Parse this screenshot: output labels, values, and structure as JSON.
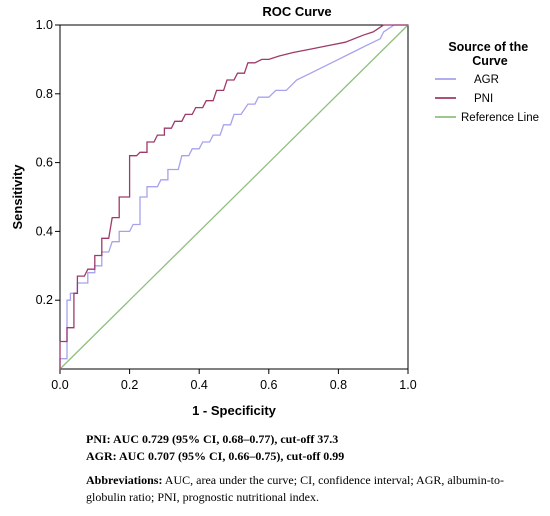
{
  "chart_data": {
    "type": "line",
    "title": "ROC Curve",
    "xlabel": "1 - Specificity",
    "ylabel": "Sensitivity",
    "xlim": [
      0,
      1
    ],
    "ylim": [
      0,
      1
    ],
    "xticks": [
      "0.0",
      "0.2",
      "0.4",
      "0.6",
      "0.8",
      "1.0"
    ],
    "yticks": [
      "0.2",
      "0.4",
      "0.6",
      "0.8",
      "1.0"
    ],
    "grid": false,
    "legend_title": "Source of the Curve",
    "legend_position": "right",
    "series": [
      {
        "name": "AGR",
        "color": "#a6a2ee",
        "x": [
          0,
          0,
          0.02,
          0.02,
          0.03,
          0.03,
          0.05,
          0.05,
          0.08,
          0.08,
          0.1,
          0.1,
          0.12,
          0.12,
          0.14,
          0.15,
          0.17,
          0.17,
          0.2,
          0.21,
          0.23,
          0.23,
          0.25,
          0.25,
          0.28,
          0.29,
          0.31,
          0.31,
          0.34,
          0.35,
          0.37,
          0.38,
          0.4,
          0.41,
          0.43,
          0.44,
          0.46,
          0.47,
          0.49,
          0.5,
          0.52,
          0.54,
          0.56,
          0.57,
          0.6,
          0.62,
          0.65,
          0.68,
          0.72,
          0.76,
          0.8,
          0.84,
          0.88,
          0.92,
          0.93,
          0.96,
          1.0
        ],
        "y": [
          0,
          0.03,
          0.03,
          0.2,
          0.2,
          0.22,
          0.22,
          0.25,
          0.25,
          0.28,
          0.28,
          0.3,
          0.3,
          0.34,
          0.34,
          0.37,
          0.37,
          0.4,
          0.4,
          0.42,
          0.42,
          0.5,
          0.5,
          0.53,
          0.53,
          0.55,
          0.55,
          0.58,
          0.58,
          0.62,
          0.62,
          0.64,
          0.64,
          0.66,
          0.66,
          0.68,
          0.68,
          0.71,
          0.71,
          0.74,
          0.74,
          0.77,
          0.77,
          0.79,
          0.79,
          0.81,
          0.81,
          0.84,
          0.86,
          0.88,
          0.9,
          0.92,
          0.94,
          0.96,
          0.98,
          1.0,
          1.0
        ]
      },
      {
        "name": "PNI",
        "color": "#9e3a6a",
        "x": [
          0,
          0,
          0.02,
          0.02,
          0.04,
          0.04,
          0.05,
          0.05,
          0.07,
          0.08,
          0.1,
          0.1,
          0.12,
          0.12,
          0.14,
          0.15,
          0.17,
          0.17,
          0.2,
          0.2,
          0.22,
          0.23,
          0.25,
          0.25,
          0.27,
          0.28,
          0.3,
          0.3,
          0.32,
          0.33,
          0.35,
          0.36,
          0.38,
          0.39,
          0.41,
          0.42,
          0.44,
          0.45,
          0.47,
          0.48,
          0.5,
          0.51,
          0.53,
          0.54,
          0.56,
          0.58,
          0.6,
          0.63,
          0.67,
          0.72,
          0.77,
          0.82,
          0.87,
          0.9,
          0.93,
          0.96,
          1.0
        ],
        "y": [
          0,
          0.08,
          0.08,
          0.12,
          0.12,
          0.22,
          0.22,
          0.27,
          0.27,
          0.29,
          0.29,
          0.33,
          0.33,
          0.38,
          0.38,
          0.44,
          0.44,
          0.5,
          0.5,
          0.62,
          0.62,
          0.63,
          0.63,
          0.66,
          0.66,
          0.68,
          0.68,
          0.7,
          0.7,
          0.72,
          0.72,
          0.74,
          0.74,
          0.76,
          0.76,
          0.78,
          0.78,
          0.81,
          0.81,
          0.84,
          0.84,
          0.86,
          0.86,
          0.89,
          0.89,
          0.9,
          0.9,
          0.91,
          0.92,
          0.93,
          0.94,
          0.95,
          0.97,
          0.98,
          1.0,
          1.0,
          1.0
        ]
      },
      {
        "name": "Reference Line",
        "color": "#8fbf7f",
        "x": [
          0,
          1
        ],
        "y": [
          0,
          1
        ]
      }
    ]
  },
  "stats": {
    "pni": "PNI: AUC 0.729 (95% CI, 0.68–0.77), cut-off 37.3",
    "agr": "AGR: AUC 0.707 (95% CI, 0.66–0.75), cut-off 0.99"
  },
  "abbreviations": {
    "label": "Abbreviations:",
    "text": " AUC, area under the curve; CI, confidence interval; AGR, albumin-to-globulin ratio; PNI, prognostic nutritional index."
  }
}
